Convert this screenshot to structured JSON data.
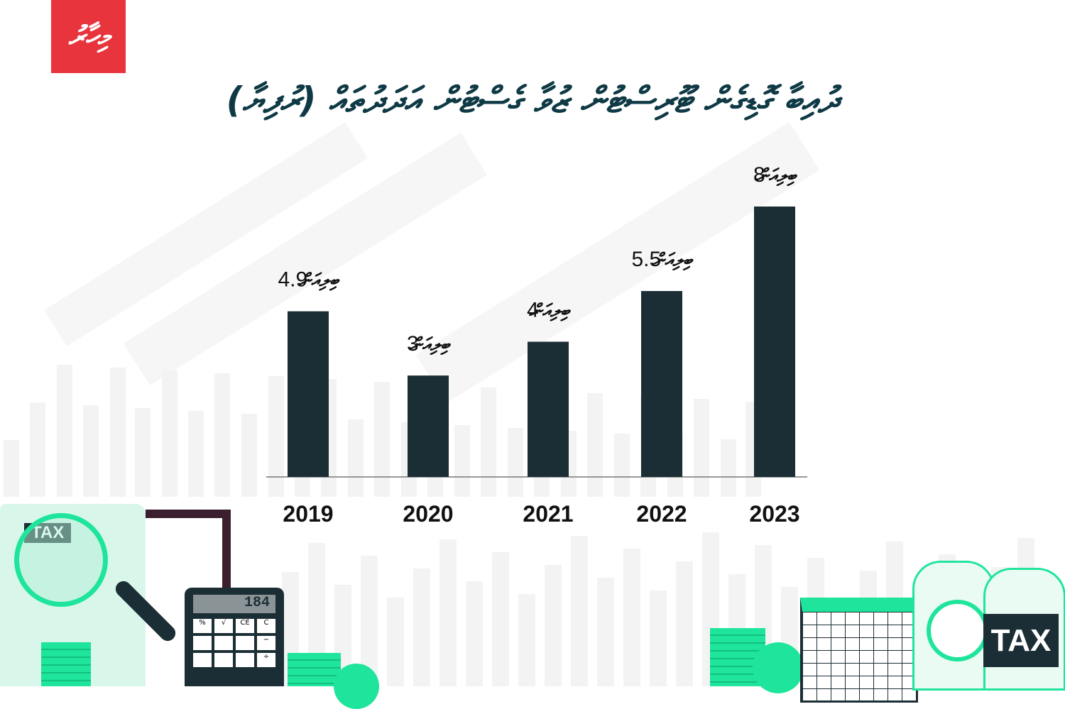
{
  "logo": {
    "text": "މިހާރު",
    "color": "#e8343c"
  },
  "title": "ދުއިބާ ގޮޑިގެން ޓޫރިސްޓުން ޒުވާ ގެސްޓުން އަދަދުތައް (ރުފިޔާ)",
  "colors": {
    "bar": "#1c2e35",
    "title": "#0f3a45",
    "accent_green": "#1ee59b"
  },
  "decorations": {
    "tax_label_left": "TAX",
    "tax_label_right": "TAX",
    "calculator_display": "184",
    "calculator_keys": [
      "%",
      "√",
      "CE",
      "C",
      "−",
      "÷"
    ]
  },
  "chart_data": {
    "type": "bar",
    "categories": [
      "2019",
      "2020",
      "2021",
      "2022",
      "2023"
    ],
    "values": [
      4.9,
      3,
      4,
      5.5,
      8
    ],
    "value_unit": "ބިލިއަން",
    "data_labels": [
      "4.9",
      "3",
      "4",
      "5.5",
      "8"
    ],
    "title": "ދުއިބާ ގޮޑިގެން ޓޫރިސްޓުން ޒުވާ ގެސްޓުން އަދަދުތައް (ރުފިޔާ)",
    "xlabel": "",
    "ylabel": "",
    "ylim": [
      0,
      8
    ],
    "grid": false,
    "legend": "none"
  }
}
